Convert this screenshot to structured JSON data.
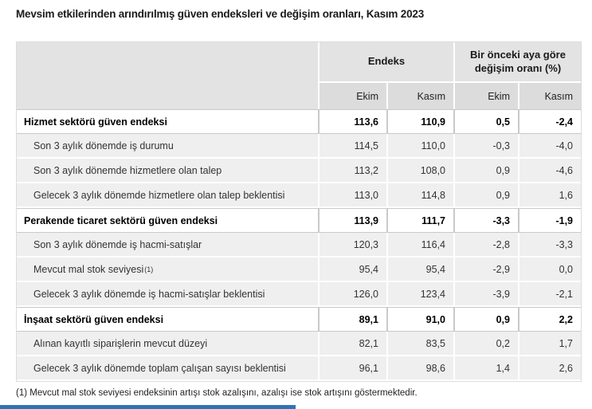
{
  "title": "Mevsim etkilerinden arındırılmış güven endeksleri ve değişim oranları, Kasım 2023",
  "table": {
    "col_groups": [
      {
        "label": "Endeks"
      },
      {
        "label": "Bir önceki aya göre değişim oranı (%)"
      }
    ],
    "sub_headers": [
      "Ekim",
      "Kasım",
      "Ekim",
      "Kasım"
    ],
    "rows": [
      {
        "type": "section",
        "label": "Hizmet sektörü güven endeksi",
        "values": [
          "113,6",
          "110,9",
          "0,5",
          "-2,4"
        ]
      },
      {
        "type": "sub",
        "label": "Son 3 aylık dönemde iş durumu",
        "values": [
          "114,5",
          "110,0",
          "-0,3",
          "-4,0"
        ]
      },
      {
        "type": "sub",
        "label": "Son 3 aylık dönemde hizmetlere olan talep",
        "values": [
          "113,2",
          "108,0",
          "0,9",
          "-4,6"
        ]
      },
      {
        "type": "sub",
        "label": "Gelecek 3 aylık dönemde hizmetlere olan talep beklentisi",
        "values": [
          "113,0",
          "114,8",
          "0,9",
          "1,6"
        ]
      },
      {
        "type": "section",
        "label": "Perakende ticaret sektörü güven endeksi",
        "values": [
          "113,9",
          "111,7",
          "-3,3",
          "-1,9"
        ]
      },
      {
        "type": "sub",
        "label": "Son 3 aylık dönemde iş hacmi-satışlar",
        "values": [
          "120,3",
          "116,4",
          "-2,8",
          "-3,3"
        ]
      },
      {
        "type": "sub",
        "label": "Mevcut mal stok seviyesi",
        "sup": "(1)",
        "values": [
          "95,4",
          "95,4",
          "-2,9",
          "0,0"
        ]
      },
      {
        "type": "sub",
        "label": "Gelecek 3 aylık dönemde iş hacmi-satışlar beklentisi",
        "values": [
          "126,0",
          "123,4",
          "-3,9",
          "-2,1"
        ]
      },
      {
        "type": "section",
        "label": "İnşaat sektörü güven endeksi",
        "values": [
          "89,1",
          "91,0",
          "0,9",
          "2,2"
        ]
      },
      {
        "type": "sub",
        "label": "Alınan kayıtlı siparişlerin mevcut düzeyi",
        "values": [
          "82,1",
          "83,5",
          "0,2",
          "1,7"
        ]
      },
      {
        "type": "sub",
        "label": "Gelecek 3 aylık dönemde toplam çalışan sayısı beklentisi",
        "values": [
          "96,1",
          "98,6",
          "1,4",
          "2,6"
        ]
      }
    ]
  },
  "footnote": "(1) Mevcut mal stok seviyesi endeksinin artışı stok azalışını, azalışı ise stok artışını göstermektedir.",
  "colors": {
    "accent_bar": "#2e74b5",
    "header_bg": "#e3e3e3",
    "subheader_bg": "#dcdcdc",
    "row_alt_bg": "#efefef",
    "section_rule": "#c9c9c9"
  },
  "chart_data": {
    "type": "table",
    "title": "Mevsim etkilerinden arındırılmış güven endeksleri ve değişim oranları, Kasım 2023",
    "columns": [
      "Endeks Ekim",
      "Endeks Kasım",
      "Değişim Ekim (%)",
      "Değişim Kasım (%)"
    ],
    "rows": [
      [
        "Hizmet sektörü güven endeksi",
        113.6,
        110.9,
        0.5,
        -2.4
      ],
      [
        "Son 3 aylık dönemde iş durumu",
        114.5,
        110.0,
        -0.3,
        -4.0
      ],
      [
        "Son 3 aylık dönemde hizmetlere olan talep",
        113.2,
        108.0,
        0.9,
        -4.6
      ],
      [
        "Gelecek 3 aylık dönemde hizmetlere olan talep beklentisi",
        113.0,
        114.8,
        0.9,
        1.6
      ],
      [
        "Perakende ticaret sektörü güven endeksi",
        113.9,
        111.7,
        -3.3,
        -1.9
      ],
      [
        "Son 3 aylık dönemde iş hacmi-satışlar",
        120.3,
        116.4,
        -2.8,
        -3.3
      ],
      [
        "Mevcut mal stok seviyesi (1)",
        95.4,
        95.4,
        -2.9,
        0.0
      ],
      [
        "Gelecek 3 aylık dönemde iş hacmi-satışlar beklentisi",
        126.0,
        123.4,
        -3.9,
        -2.1
      ],
      [
        "İnşaat sektörü güven endeksi",
        89.1,
        91.0,
        0.9,
        2.2
      ],
      [
        "Alınan kayıtlı siparişlerin mevcut düzeyi",
        82.1,
        83.5,
        0.2,
        1.7
      ],
      [
        "Gelecek 3 aylık dönemde toplam çalışan sayısı beklentisi",
        96.1,
        98.6,
        1.4,
        2.6
      ]
    ]
  }
}
